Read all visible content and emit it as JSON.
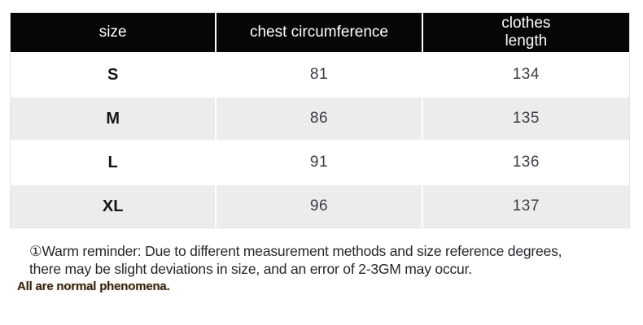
{
  "colors": {
    "header_bg": "#060606",
    "header_text": "#ffffff",
    "row_bg": "#ffffff",
    "row_alt_bg": "#ececec",
    "size_text": "#161616",
    "number_text": "#3d3d45",
    "grid_line": "#ffffff",
    "outer_border": "#e2e2e2",
    "note_text": "#26262c",
    "footnote_text": "#2e2414"
  },
  "table": {
    "columns": [
      {
        "key": "size",
        "label": "size"
      },
      {
        "key": "chest",
        "label": "chest circumference"
      },
      {
        "key": "length",
        "label": "clothes\nlength"
      }
    ],
    "rows": [
      {
        "size": "S",
        "chest": "81",
        "length": "134"
      },
      {
        "size": "M",
        "chest": "86",
        "length": "135"
      },
      {
        "size": "L",
        "chest": "91",
        "length": "136"
      },
      {
        "size": "XL",
        "chest": "96",
        "length": "137"
      }
    ]
  },
  "notes": {
    "reminder_line1": "①Warm reminder: Due to different measurement methods and size reference degrees,",
    "reminder_line2": "there may be slight deviations in size, and an error of 2-3GM may occur.",
    "footnote": "All are normal phenomena."
  }
}
